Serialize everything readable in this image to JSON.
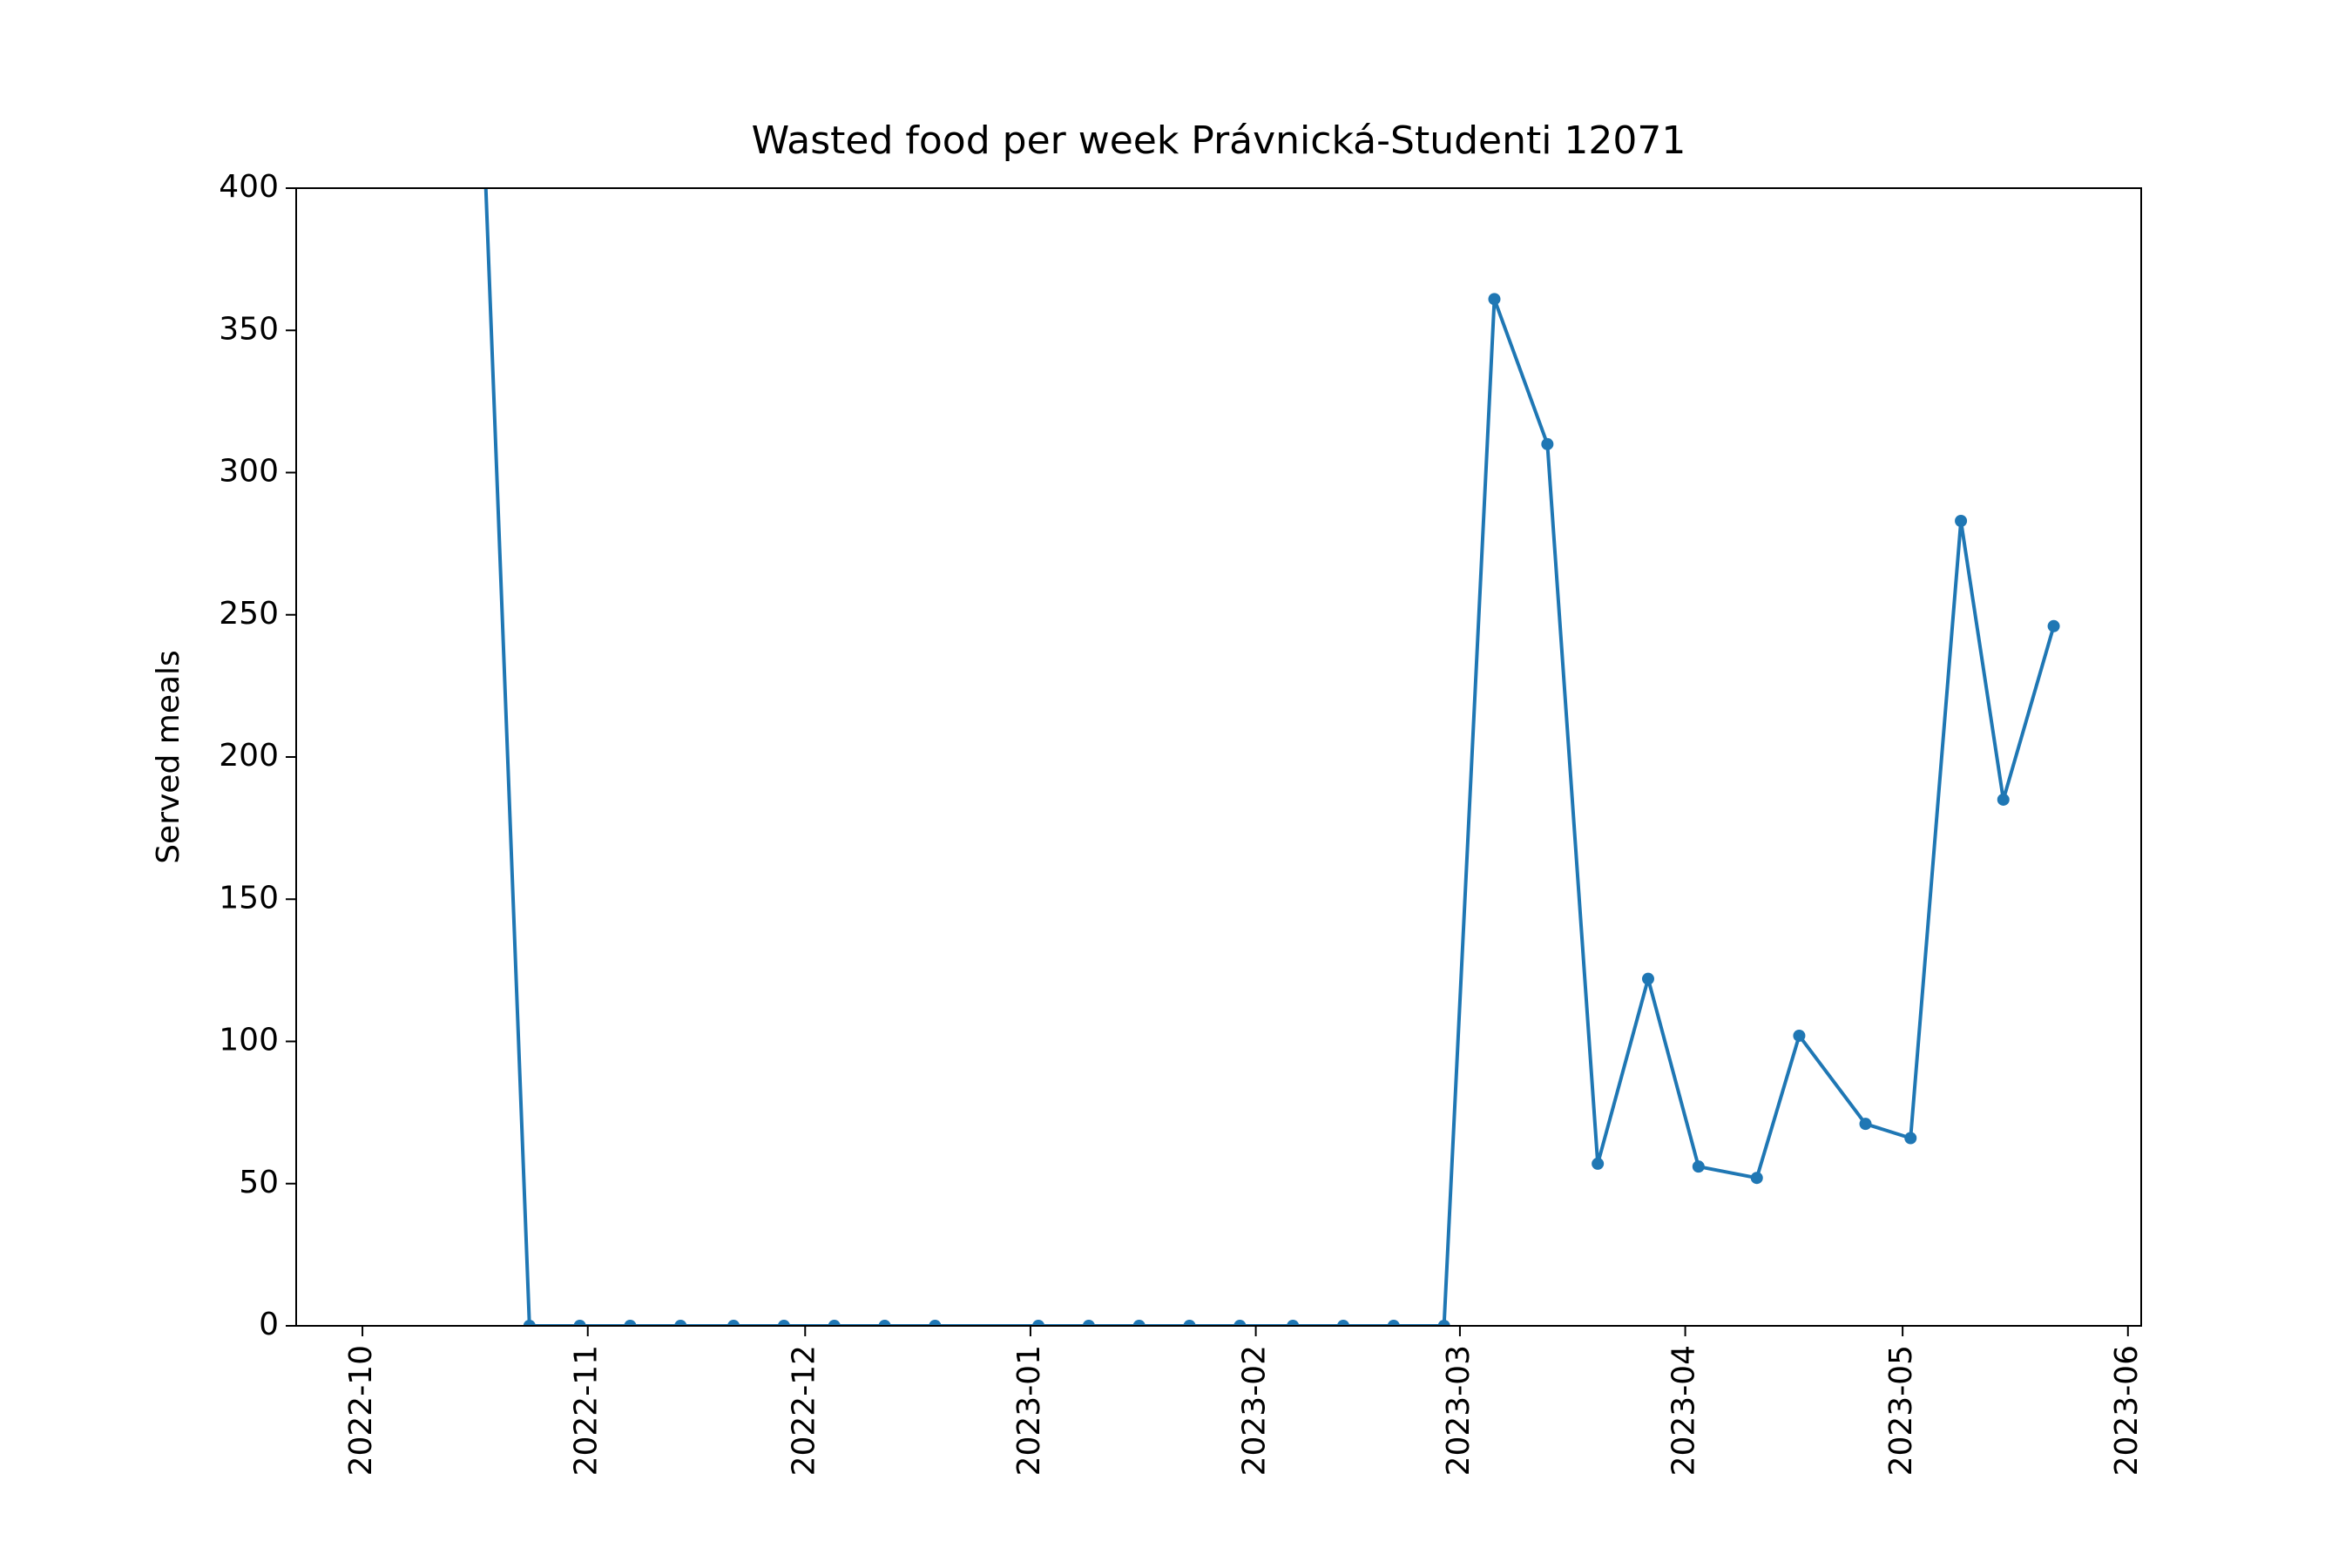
{
  "chart_data": {
    "type": "line",
    "title": "Wasted food per week Právnická-Studenti 12071",
    "y_label": "Served meals",
    "x": [
      2022.792,
      2022.811,
      2022.83,
      2022.849,
      2022.868,
      2022.888,
      2022.907,
      2022.926,
      2022.945,
      2022.964,
      2023.003,
      2023.022,
      2023.041,
      2023.06,
      2023.079,
      2023.099,
      2023.118,
      2023.137,
      2023.156,
      2023.175,
      2023.195,
      2023.214,
      2023.233,
      2023.252,
      2023.274,
      2023.29,
      2023.315,
      2023.332,
      2023.351,
      2023.367,
      2023.386
    ],
    "series": [
      {
        "name": "Wasted food",
        "color": "#1f77b4",
        "values": [
          462,
          0,
          0,
          0,
          0,
          0,
          0,
          0,
          0,
          0,
          0,
          0,
          0,
          0,
          0,
          0,
          0,
          0,
          0,
          361,
          310,
          57,
          122,
          56,
          52,
          102,
          71,
          66,
          283,
          185,
          246
        ]
      }
    ],
    "xlim": [
      2022.723,
      2023.419
    ],
    "xticks": [
      {
        "value": 2022.748,
        "label": "2022-10"
      },
      {
        "value": 2022.833,
        "label": "2022-11"
      },
      {
        "value": 2022.915,
        "label": "2022-12"
      },
      {
        "value": 2023.0,
        "label": "2023-01"
      },
      {
        "value": 2023.085,
        "label": "2023-02"
      },
      {
        "value": 2023.162,
        "label": "2023-03"
      },
      {
        "value": 2023.247,
        "label": "2023-04"
      },
      {
        "value": 2023.329,
        "label": "2023-05"
      },
      {
        "value": 2023.414,
        "label": "2023-06"
      }
    ],
    "ylim": [
      0,
      400
    ],
    "yticks": [
      0,
      50,
      100,
      150,
      200,
      250,
      300,
      350,
      400
    ],
    "grid": false
  }
}
